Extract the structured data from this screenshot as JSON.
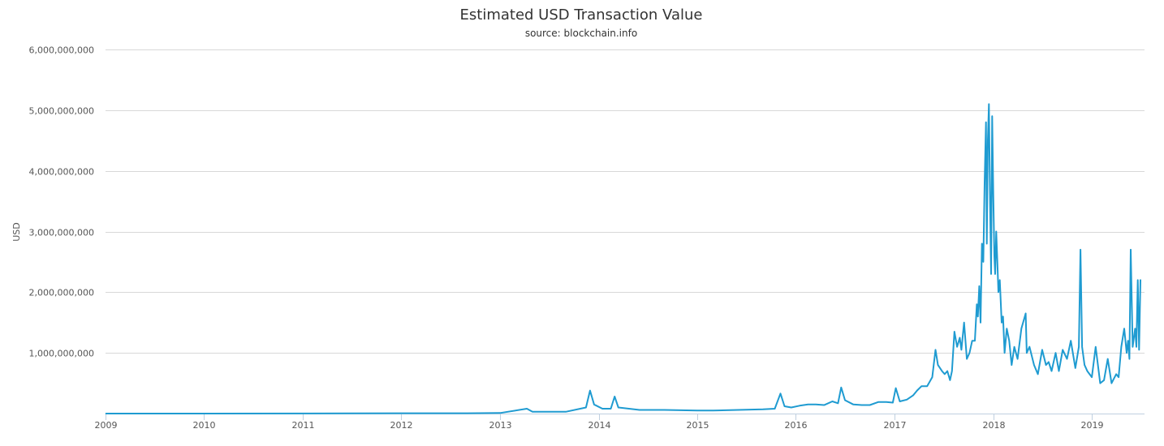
{
  "chart_data": {
    "type": "line",
    "title": "Estimated USD Transaction Value",
    "subtitle": "source: blockchain.info",
    "xlabel": "",
    "ylabel": "USD",
    "x_axis_type": "date",
    "xlim": [
      "2009-01-01",
      "2019-07-15"
    ],
    "ylim": [
      0,
      6000000000
    ],
    "x_ticks": [
      "2009",
      "2010",
      "2011",
      "2012",
      "2013",
      "2014",
      "2015",
      "2016",
      "2017",
      "2018",
      "2019"
    ],
    "y_ticks": [
      {
        "value": 0,
        "label": ""
      },
      {
        "value": 1000000000,
        "label": "1,000,000,000"
      },
      {
        "value": 2000000000,
        "label": "2,000,000,000"
      },
      {
        "value": 3000000000,
        "label": "3,000,000,000"
      },
      {
        "value": 4000000000,
        "label": "4,000,000,000"
      },
      {
        "value": 5000000000,
        "label": "5,000,000,000"
      },
      {
        "value": 6000000000,
        "label": "6,000,000,000"
      }
    ],
    "grid": true,
    "legend": "none",
    "colors": {
      "series": "#1f9bd1",
      "grid": "#d8d8d8",
      "axis": "#c0d0e0"
    },
    "series": [
      {
        "x": [
          "2009-01-03",
          "2010-01-01",
          "2011-01-01",
          "2011-06-15",
          "2012-01-01",
          "2012-09-01",
          "2013-01-01",
          "2013-04-10",
          "2013-05-01",
          "2013-09-01",
          "2013-11-15",
          "2013-11-30",
          "2013-12-15",
          "2014-01-15",
          "2014-02-15",
          "2014-03-01",
          "2014-03-15",
          "2014-06-01",
          "2014-09-01",
          "2015-01-01",
          "2015-03-01",
          "2015-06-01",
          "2015-09-01",
          "2015-10-15",
          "2015-11-05",
          "2015-11-20",
          "2015-12-15",
          "2016-01-15",
          "2016-02-15",
          "2016-03-15",
          "2016-04-15",
          "2016-05-15",
          "2016-06-05",
          "2016-06-17",
          "2016-07-01",
          "2016-08-01",
          "2016-09-01",
          "2016-10-01",
          "2016-11-01",
          "2016-12-01",
          "2016-12-25",
          "2017-01-05",
          "2017-01-20",
          "2017-02-15",
          "2017-03-10",
          "2017-03-25",
          "2017-04-10",
          "2017-05-01",
          "2017-05-20",
          "2017-06-01",
          "2017-06-10",
          "2017-06-25",
          "2017-07-05",
          "2017-07-15",
          "2017-07-25",
          "2017-08-01",
          "2017-08-10",
          "2017-08-20",
          "2017-08-30",
          "2017-09-05",
          "2017-09-15",
          "2017-09-25",
          "2017-10-05",
          "2017-10-15",
          "2017-10-25",
          "2017-11-01",
          "2017-11-05",
          "2017-11-10",
          "2017-11-15",
          "2017-11-20",
          "2017-11-25",
          "2017-11-30",
          "2017-12-05",
          "2017-12-08",
          "2017-12-12",
          "2017-12-16",
          "2017-12-20",
          "2017-12-24",
          "2017-12-28",
          "2018-01-01",
          "2018-01-05",
          "2018-01-08",
          "2018-01-12",
          "2018-01-16",
          "2018-01-20",
          "2018-01-25",
          "2018-02-01",
          "2018-02-06",
          "2018-02-12",
          "2018-02-20",
          "2018-03-01",
          "2018-03-10",
          "2018-03-20",
          "2018-04-01",
          "2018-04-15",
          "2018-05-01",
          "2018-05-05",
          "2018-05-15",
          "2018-06-01",
          "2018-06-15",
          "2018-07-01",
          "2018-07-15",
          "2018-07-25",
          "2018-08-05",
          "2018-08-20",
          "2018-09-01",
          "2018-09-15",
          "2018-10-01",
          "2018-10-15",
          "2018-11-01",
          "2018-11-14",
          "2018-11-20",
          "2018-11-26",
          "2018-12-05",
          "2018-12-15",
          "2019-01-01",
          "2019-01-15",
          "2019-02-01",
          "2019-02-15",
          "2019-03-01",
          "2019-03-15",
          "2019-04-01",
          "2019-04-10",
          "2019-04-20",
          "2019-05-01",
          "2019-05-10",
          "2019-05-15",
          "2019-05-20",
          "2019-05-25",
          "2019-06-01",
          "2019-06-10",
          "2019-06-15",
          "2019-06-20",
          "2019-06-25",
          "2019-06-30"
        ],
        "y": [
          0,
          0,
          1000000,
          3000000,
          5000000,
          5000000,
          10000000,
          80000000,
          30000000,
          30000000,
          100000000,
          380000000,
          150000000,
          80000000,
          80000000,
          280000000,
          100000000,
          60000000,
          60000000,
          50000000,
          50000000,
          60000000,
          70000000,
          80000000,
          330000000,
          120000000,
          100000000,
          130000000,
          150000000,
          150000000,
          140000000,
          200000000,
          170000000,
          430000000,
          220000000,
          150000000,
          140000000,
          140000000,
          190000000,
          190000000,
          180000000,
          420000000,
          200000000,
          230000000,
          300000000,
          380000000,
          450000000,
          450000000,
          600000000,
          1050000000,
          800000000,
          700000000,
          650000000,
          700000000,
          550000000,
          700000000,
          1350000000,
          1100000000,
          1250000000,
          1050000000,
          1500000000,
          900000000,
          1000000000,
          1200000000,
          1200000000,
          1800000000,
          1600000000,
          2100000000,
          1500000000,
          2800000000,
          2500000000,
          3800000000,
          4800000000,
          2800000000,
          4500000000,
          5100000000,
          3500000000,
          2300000000,
          4900000000,
          3600000000,
          2600000000,
          2300000000,
          3000000000,
          2500000000,
          2000000000,
          2200000000,
          1500000000,
          1600000000,
          1000000000,
          1400000000,
          1200000000,
          800000000,
          1100000000,
          900000000,
          1400000000,
          1650000000,
          1000000000,
          1100000000,
          800000000,
          650000000,
          1050000000,
          800000000,
          850000000,
          700000000,
          1000000000,
          700000000,
          1050000000,
          900000000,
          1200000000,
          750000000,
          1100000000,
          2700000000,
          1100000000,
          800000000,
          700000000,
          600000000,
          1100000000,
          500000000,
          550000000,
          900000000,
          500000000,
          650000000,
          600000000,
          1100000000,
          1400000000,
          1000000000,
          1200000000,
          900000000,
          2700000000,
          1100000000,
          1400000000,
          1100000000,
          2200000000,
          1050000000,
          2200000000
        ]
      }
    ]
  }
}
